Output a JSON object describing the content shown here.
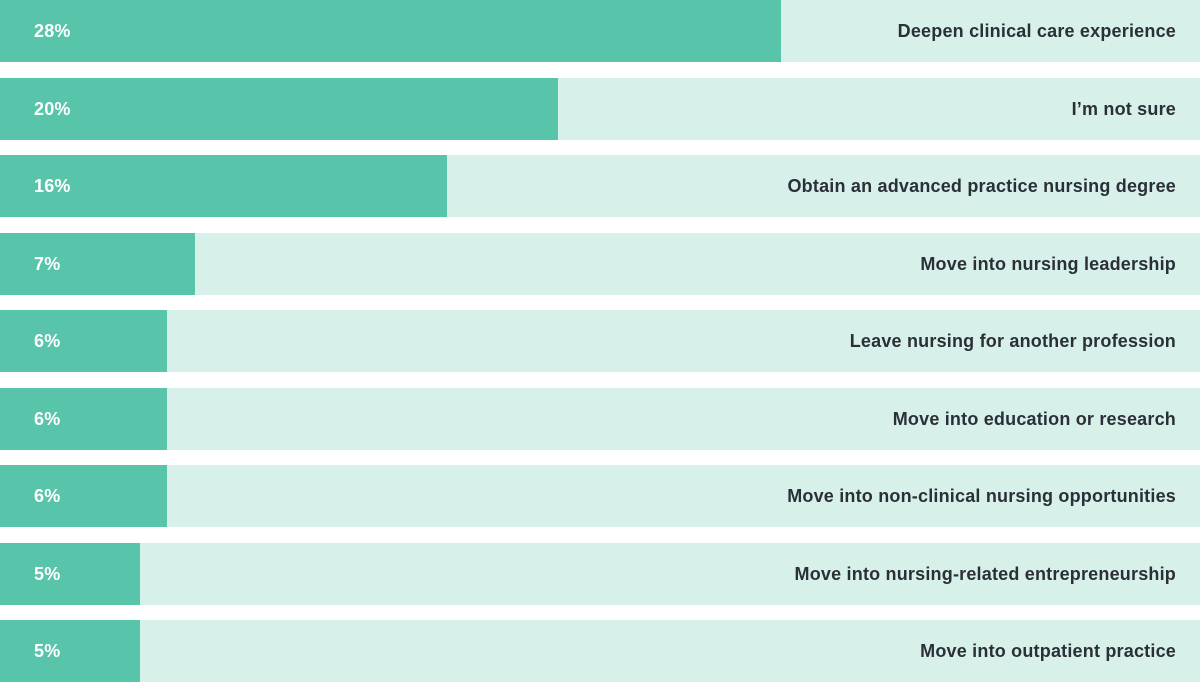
{
  "chart_data": {
    "type": "bar",
    "orientation": "horizontal",
    "xlim": [
      0,
      43
    ],
    "colors": {
      "bar": "#58c5aa",
      "track": "#d7f1ea",
      "value_text": "#ffffff",
      "label_text": "#2b2f38"
    },
    "categories": [
      "Deepen clinical care experience",
      "I’m not sure",
      "Obtain an advanced practice nursing degree",
      "Move into nursing leadership",
      "Leave nursing for another profession",
      "Move into education or research",
      "Move into non-clinical nursing opportunities",
      "Move into nursing-related entrepreneurship",
      "Move into outpatient practice"
    ],
    "values": [
      28,
      20,
      16,
      7,
      6,
      6,
      6,
      5,
      5
    ],
    "value_labels": [
      "28%",
      "20%",
      "16%",
      "7%",
      "6%",
      "6%",
      "6%",
      "5%",
      "5%"
    ]
  }
}
